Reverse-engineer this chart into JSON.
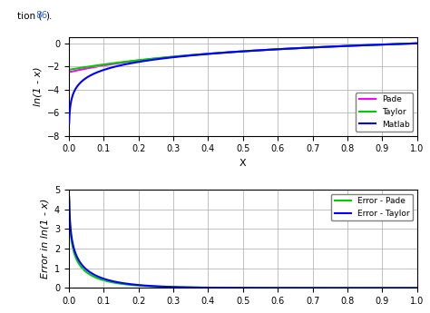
{
  "subplot1": {
    "ylabel": "ln(1 - x)",
    "xlabel": "X",
    "ylim": [
      -8,
      0.5
    ],
    "yticks": [
      0,
      -2,
      -4,
      -6,
      -8
    ],
    "xlim": [
      0,
      1
    ],
    "xticks": [
      0,
      0.1,
      0.2,
      0.3,
      0.4,
      0.5,
      0.6,
      0.7,
      0.8,
      0.9,
      1
    ],
    "lines": {
      "matlab": {
        "color": "#0000FF",
        "label": "Matlab",
        "lw": 1.5
      },
      "taylor": {
        "color": "#00CC00",
        "label": "Taylor",
        "lw": 1.5
      },
      "pade": {
        "color": "#FF00FF",
        "label": "Pade",
        "lw": 1.5
      }
    },
    "legend_loc": "lower right"
  },
  "subplot2": {
    "ylabel": "Error in ln(1 - x)",
    "xlabel": "x",
    "ylim": [
      0,
      5
    ],
    "yticks": [
      0,
      1,
      2,
      3,
      4,
      5
    ],
    "xlim": [
      0,
      1
    ],
    "xticks": [
      0,
      0.1,
      0.2,
      0.3,
      0.4,
      0.5,
      0.6,
      0.7,
      0.8,
      0.9,
      1
    ],
    "lines": {
      "error_taylor": {
        "color": "#0000FF",
        "label": "Error - Taylor",
        "lw": 1.5
      },
      "error_pade": {
        "color": "#00CC00",
        "label": "Error - Pade",
        "lw": 1.5
      }
    },
    "legend_loc": "upper right"
  },
  "fig_bg": "#FFFFFF",
  "axes_bg": "#FFFFFF",
  "grid_color": "#AAAAAA",
  "grid_lw": 0.5,
  "taylor_terms": 5
}
